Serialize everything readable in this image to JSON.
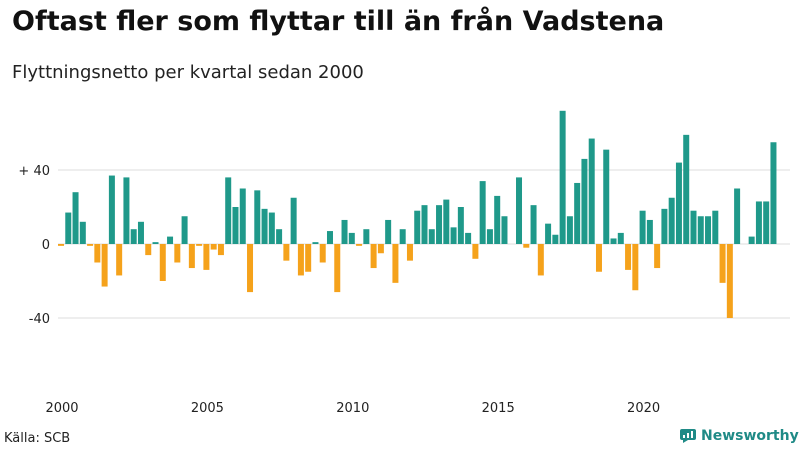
{
  "title": "Oftast fler som flyttar till än från Vadstena",
  "subtitle": "Flyttningsnetto per kvartal sedan 2000",
  "source": "Källa: SCB",
  "brand": "Newsworthy",
  "colors": {
    "positive": "#1f998a",
    "negative": "#f5a21b",
    "grid": "#dddddd",
    "brand": "#1f8a86"
  },
  "chart_data": {
    "type": "bar",
    "x_start_year": 2000,
    "quarters_per_year": 4,
    "values": [
      -1,
      17,
      28,
      12,
      -1,
      -10,
      -23,
      37,
      -17,
      36,
      8,
      12,
      -6,
      1,
      -20,
      4,
      -10,
      15,
      -13,
      -1,
      -14,
      -3,
      -6,
      36,
      20,
      30,
      -26,
      29,
      19,
      17,
      8,
      -9,
      25,
      -17,
      -15,
      1,
      -10,
      7,
      -26,
      13,
      6,
      -1,
      8,
      -13,
      -5,
      13,
      -21,
      8,
      -9,
      18,
      21,
      8,
      21,
      24,
      9,
      20,
      6,
      -8,
      34,
      8,
      26,
      15,
      0,
      36,
      -2,
      21,
      -17,
      11,
      5,
      72,
      15,
      33,
      46,
      57,
      -15,
      51,
      3,
      6,
      -14,
      -25,
      18,
      13,
      -13,
      19,
      25,
      44,
      59,
      18,
      15,
      15,
      18,
      -21,
      -40,
      30,
      0,
      4,
      23,
      23,
      55
    ],
    "yticks": [
      {
        "value": 40,
        "label": "+ 40"
      },
      {
        "value": 0,
        "label": "0"
      },
      {
        "value": -40,
        "label": "-40"
      }
    ],
    "xticks": [
      {
        "year": 2000,
        "label": "2000"
      },
      {
        "year": 2005,
        "label": "2005"
      },
      {
        "year": 2010,
        "label": "2010"
      },
      {
        "year": 2015,
        "label": "2015"
      },
      {
        "year": 2020,
        "label": "2020"
      }
    ],
    "ylim": [
      -75,
      75
    ],
    "grid": true,
    "legend": "none"
  }
}
